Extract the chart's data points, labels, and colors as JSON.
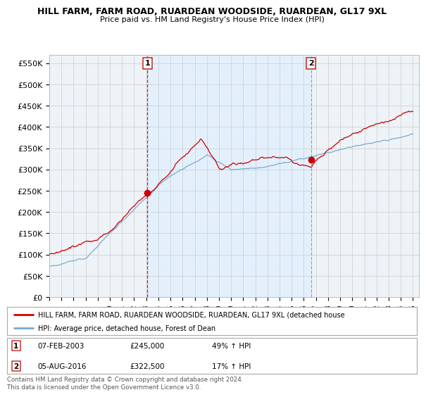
{
  "title": "HILL FARM, FARM ROAD, RUARDEAN WOODSIDE, RUARDEAN, GL17 9XL",
  "subtitle": "Price paid vs. HM Land Registry's House Price Index (HPI)",
  "ylabel_ticks": [
    "£0",
    "£50K",
    "£100K",
    "£150K",
    "£200K",
    "£250K",
    "£300K",
    "£350K",
    "£400K",
    "£450K",
    "£500K",
    "£550K"
  ],
  "ytick_values": [
    0,
    50000,
    100000,
    150000,
    200000,
    250000,
    300000,
    350000,
    400000,
    450000,
    500000,
    550000
  ],
  "ylim": [
    0,
    570000
  ],
  "sale1_date_num": 2003.1,
  "sale1_price": 245000,
  "sale2_date_num": 2016.6,
  "sale2_price": 322500,
  "legend_line1": "HILL FARM, FARM ROAD, RUARDEAN WOODSIDE, RUARDEAN, GL17 9XL (detached house",
  "legend_line2": "HPI: Average price, detached house, Forest of Dean",
  "footer": "Contains HM Land Registry data © Crown copyright and database right 2024.\nThis data is licensed under the Open Government Licence v3.0.",
  "red_color": "#cc0000",
  "blue_color": "#7aabcf",
  "shade_color": "#ddeeff",
  "bg_color": "#ffffff",
  "plot_bg": "#eef3f8",
  "grid_color": "#cccccc",
  "vline1_color": "#cc0000",
  "vline2_color": "#8899aa"
}
